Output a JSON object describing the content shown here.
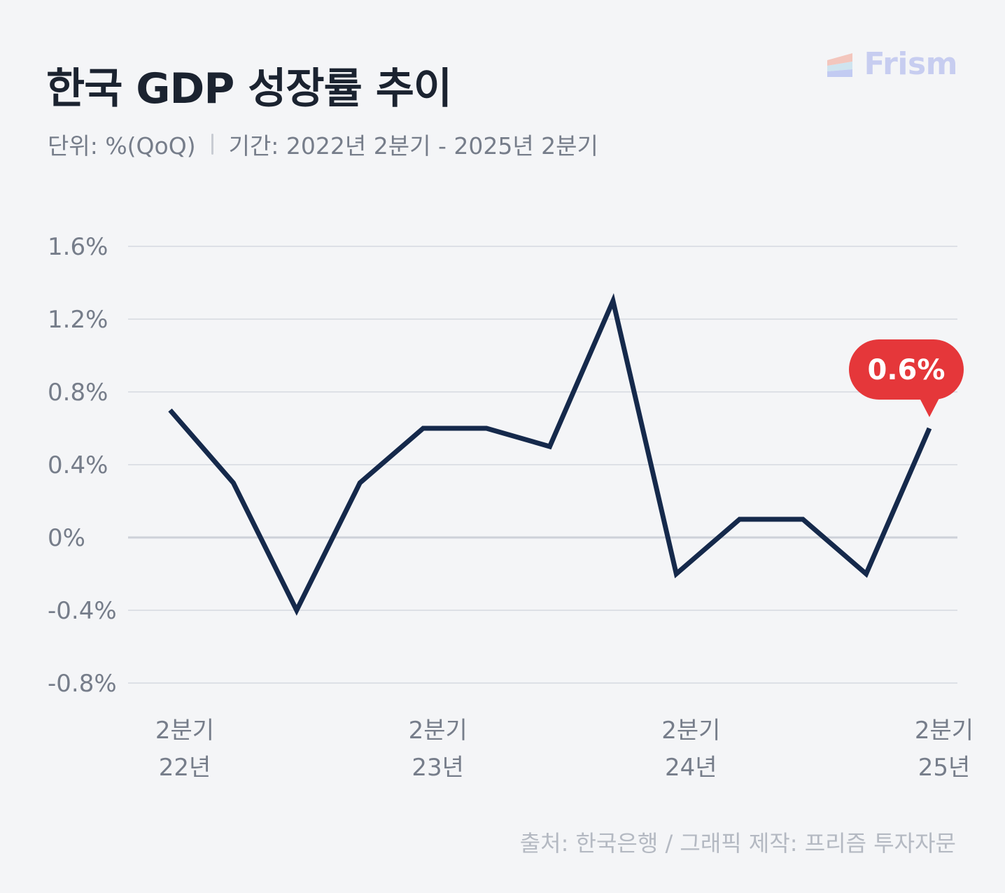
{
  "header": {
    "title": "한국 GDP 성장률 추이",
    "unit": "단위: %(QoQ)",
    "period": "기간: 2022년 2분기 - 2025년 2분기",
    "brand": "Frism"
  },
  "footer": {
    "source": "출처: 한국은행 / 그래픽 제작: 프리즘 투자자문"
  },
  "chart_data": {
    "type": "line",
    "title": "한국 GDP 성장률 추이",
    "x": [
      "2022Q2",
      "2022Q3",
      "2022Q4",
      "2023Q1",
      "2023Q2",
      "2023Q3",
      "2023Q4",
      "2024Q1",
      "2024Q2",
      "2024Q3",
      "2024Q4",
      "2025Q1",
      "2025Q2"
    ],
    "series": [
      {
        "values": [
          0.7,
          0.3,
          -0.4,
          0.3,
          0.6,
          0.6,
          0.5,
          1.3,
          -0.2,
          0.1,
          0.1,
          -0.2,
          0.6
        ]
      }
    ],
    "ylim": [
      -0.8,
      1.6
    ],
    "yticks": [
      "1.6%",
      "1.2%",
      "0.8%",
      "0.4%",
      "0%",
      "-0.4%",
      "-0.8%"
    ],
    "ytick_values": [
      1.6,
      1.2,
      0.8,
      0.4,
      0,
      -0.4,
      -0.8
    ],
    "xtick_labels": [
      {
        "index": 0,
        "line1": "2분기",
        "line2": "22년"
      },
      {
        "index": 4,
        "line1": "2분기",
        "line2": "23년"
      },
      {
        "index": 8,
        "line1": "2분기",
        "line2": "24년"
      },
      {
        "index": 12,
        "line1": "2분기",
        "line2": "25년"
      }
    ],
    "callout": {
      "index": 12,
      "label": "0.6%"
    },
    "grid": true,
    "colors": {
      "line": "#15294b",
      "callout": "#e5373a",
      "grid": "#d5d9e0",
      "tick": "#767d8a"
    }
  }
}
